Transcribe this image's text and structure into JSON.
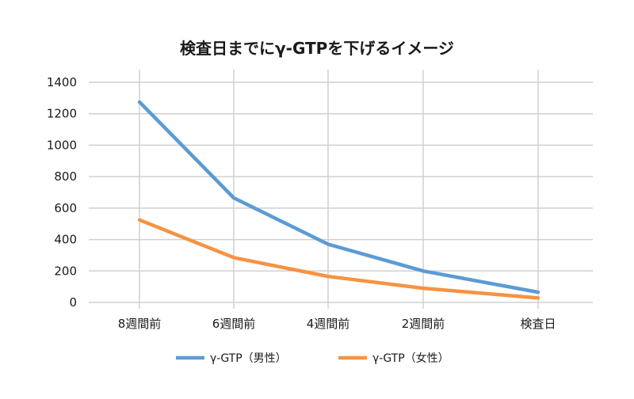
{
  "chart_data": {
    "type": "line",
    "title": "検査日までにγ-GTPを下げるイメージ",
    "xlabel": "",
    "ylabel": "",
    "categories": [
      "8週間前",
      "6週間前",
      "4週間前",
      "2週間前",
      "検査日"
    ],
    "y_ticks": [
      "0",
      "200",
      "400",
      "600",
      "800",
      "1000",
      "1200",
      "1400"
    ],
    "ylim": [
      0,
      1400
    ],
    "grid": true,
    "legend_position": "bottom",
    "series": [
      {
        "name": "γ-GTP（男性）",
        "color": "#5b9bd5",
        "values": [
          1275,
          665,
          370,
          200,
          65
        ]
      },
      {
        "name": "γ-GTP（女性）",
        "color": "#f59342",
        "values": [
          525,
          285,
          165,
          90,
          28
        ]
      }
    ]
  }
}
